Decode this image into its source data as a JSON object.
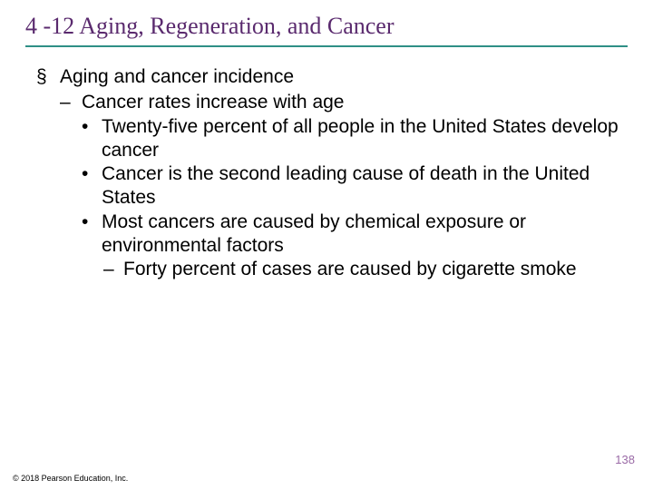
{
  "colors": {
    "title_text": "#5a2a6e",
    "title_underline": "#2e8f86",
    "body_text": "#000000",
    "pagenum_text": "#9a6aa6",
    "background": "#ffffff"
  },
  "typography": {
    "title_font": "Times New Roman",
    "title_size_pt": 20,
    "body_font": "Arial",
    "body_size_pt": 16
  },
  "title": "4 -12 Aging, Regeneration, and Cancer",
  "bullets": {
    "lvl0_marker": "§",
    "lvl1_marker": "–",
    "lvl2_marker": "•",
    "lvl3_marker": "–",
    "lvl0_text": "Aging and cancer incidence",
    "lvl1_text": "Cancer rates increase with age",
    "lvl2a_text": "Twenty-five percent of all people in the United States develop cancer",
    "lvl2b_text": "Cancer is the second leading cause of death in the United States",
    "lvl2c_text": "Most cancers are caused by chemical exposure or environmental factors",
    "lvl3_text": "Forty percent of cases are caused by cigarette smoke"
  },
  "page_number": "138",
  "copyright": "© 2018 Pearson Education, Inc."
}
